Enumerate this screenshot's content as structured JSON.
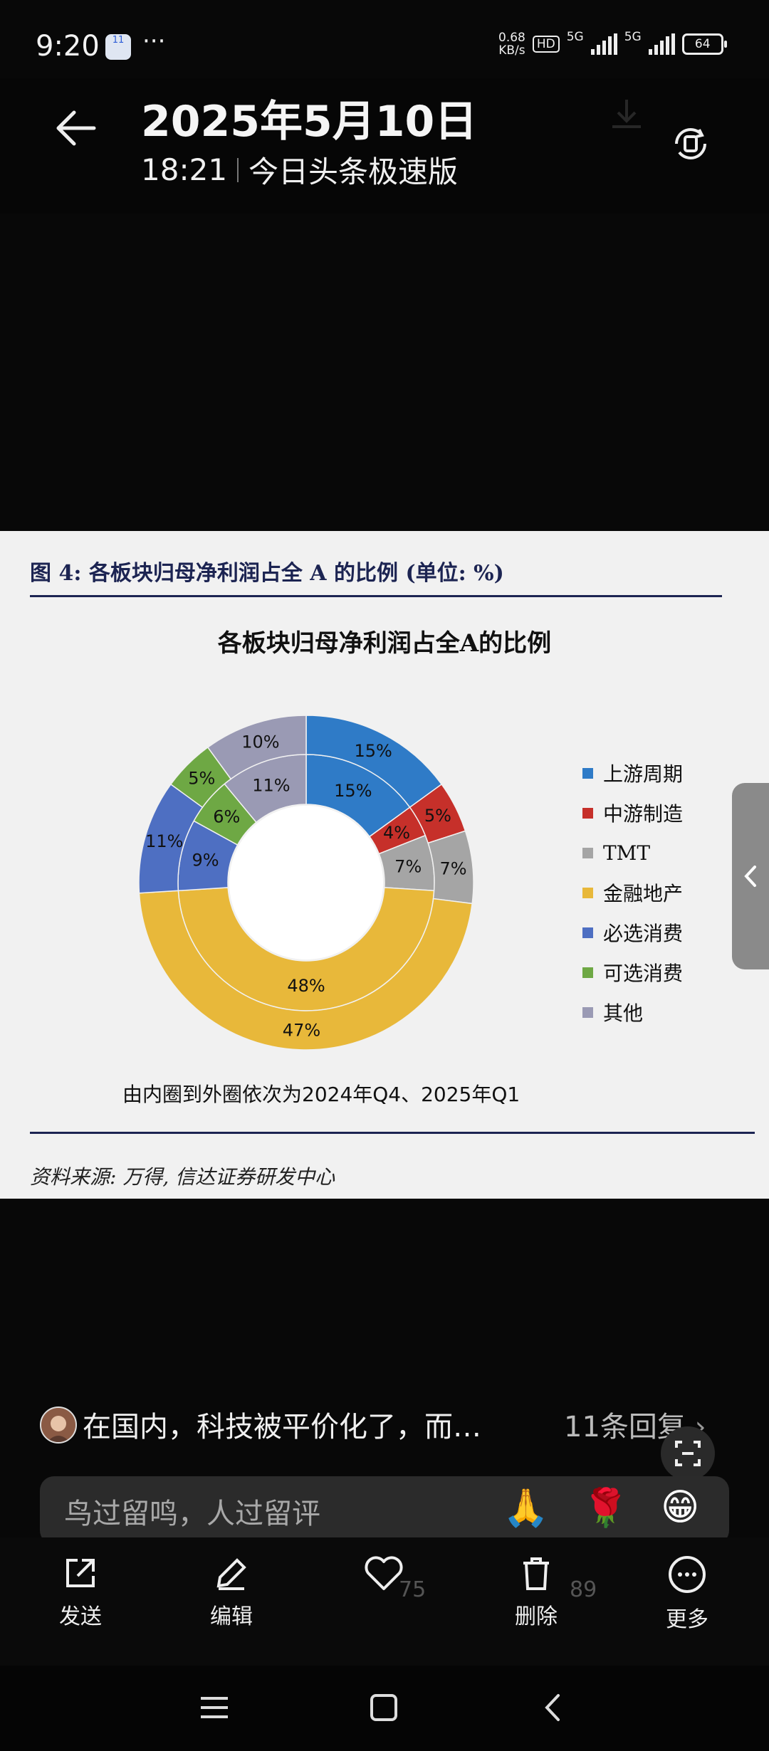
{
  "status_bar": {
    "time": "9:20",
    "app_badge": "11",
    "more": "···",
    "net_speed_value": "0.68",
    "net_speed_unit": "KB/s",
    "hd_label": "HD",
    "sim1": "5G",
    "sim2": "5G",
    "battery": "64"
  },
  "header": {
    "title": "2025年5月10日",
    "time": "18:21",
    "source_app": "今日头条极速版"
  },
  "figure": {
    "caption": "图 4: 各板块归母净利润占全 A 的比例 (单位: %)",
    "note": "由内圈到外圈依次为2024年Q4、2025年Q1",
    "source": "资料来源: 万得, 信达证券研发中心"
  },
  "chart_data": {
    "type": "donut",
    "title": "各板块归母净利润占全A的比例",
    "categories": [
      "上游周期",
      "中游制造",
      "TMT",
      "金融地产",
      "必选消费",
      "可选消费",
      "其他"
    ],
    "colors": [
      "#2f7bc7",
      "#c6302a",
      "#a5a5a5",
      "#e8b83a",
      "#4e6fc2",
      "#6ea844",
      "#9a9ab4"
    ],
    "series": [
      {
        "name": "2024年Q4",
        "ring": "inner",
        "values": [
          15,
          4,
          7,
          48,
          9,
          6,
          11
        ]
      },
      {
        "name": "2025年Q1",
        "ring": "outer",
        "values": [
          15,
          5,
          7,
          47,
          11,
          5,
          10
        ]
      }
    ],
    "legend_position": "right"
  },
  "comment": {
    "text": "在国内，科技被平价化了，而…",
    "replies": "11条回复"
  },
  "input": {
    "placeholder": "鸟过留鸣，人过留评",
    "emojis": [
      "🙏",
      "🌹",
      "😁"
    ]
  },
  "toolbar": {
    "send": "发送",
    "edit": "编辑",
    "delete": "删除",
    "more": "更多",
    "count_a": "75",
    "count_b": "89"
  }
}
